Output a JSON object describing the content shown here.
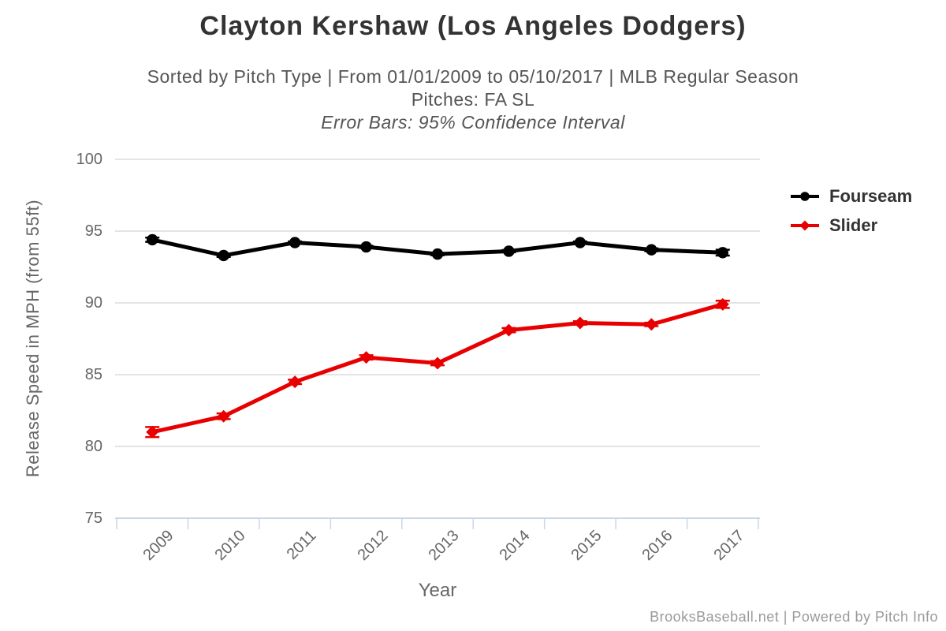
{
  "header": {
    "title": "Clayton Kershaw (Los Angeles Dodgers)",
    "subtitle_line1": "Sorted by Pitch Type | From 01/01/2009 to 05/10/2017 | MLB Regular Season",
    "subtitle_line2": "Pitches: FA SL",
    "subtitle_line3": "Error Bars: 95% Confidence Interval"
  },
  "chart_data": {
    "type": "line",
    "title": "Clayton Kershaw (Los Angeles Dodgers)",
    "xlabel": "Year",
    "ylabel": "Release Speed in MPH (from 55ft)",
    "categories": [
      "2009",
      "2010",
      "2011",
      "2012",
      "2013",
      "2014",
      "2015",
      "2016",
      "2017"
    ],
    "ylim": [
      75,
      100
    ],
    "yticks": [
      75,
      80,
      85,
      90,
      95,
      100
    ],
    "grid": true,
    "legend_position": "right-top",
    "error_bars": "95% Confidence Interval",
    "series": [
      {
        "name": "Fourseam",
        "color": "#000000",
        "marker": "circle",
        "values": [
          94.4,
          93.3,
          94.2,
          93.9,
          93.4,
          93.6,
          94.2,
          93.7,
          93.5
        ],
        "errors": [
          0.15,
          0.1,
          0.08,
          0.08,
          0.08,
          0.08,
          0.08,
          0.1,
          0.2
        ]
      },
      {
        "name": "Slider",
        "color": "#e80000",
        "marker": "diamond",
        "values": [
          81.0,
          82.1,
          84.5,
          86.2,
          85.8,
          88.1,
          88.6,
          88.5,
          89.9
        ],
        "errors": [
          0.35,
          0.2,
          0.15,
          0.15,
          0.15,
          0.15,
          0.12,
          0.12,
          0.25
        ]
      }
    ]
  },
  "footer": {
    "credit": "BrooksBaseball.net | Powered by Pitch Info"
  },
  "colors": {
    "grid": "#e4e4e4",
    "axis": "#c9d7e8",
    "title_text": "#333333",
    "subtitle_text": "#555555",
    "axis_text": "#666666",
    "legend_text": "#333333",
    "footer_text": "#9a9a9a"
  }
}
